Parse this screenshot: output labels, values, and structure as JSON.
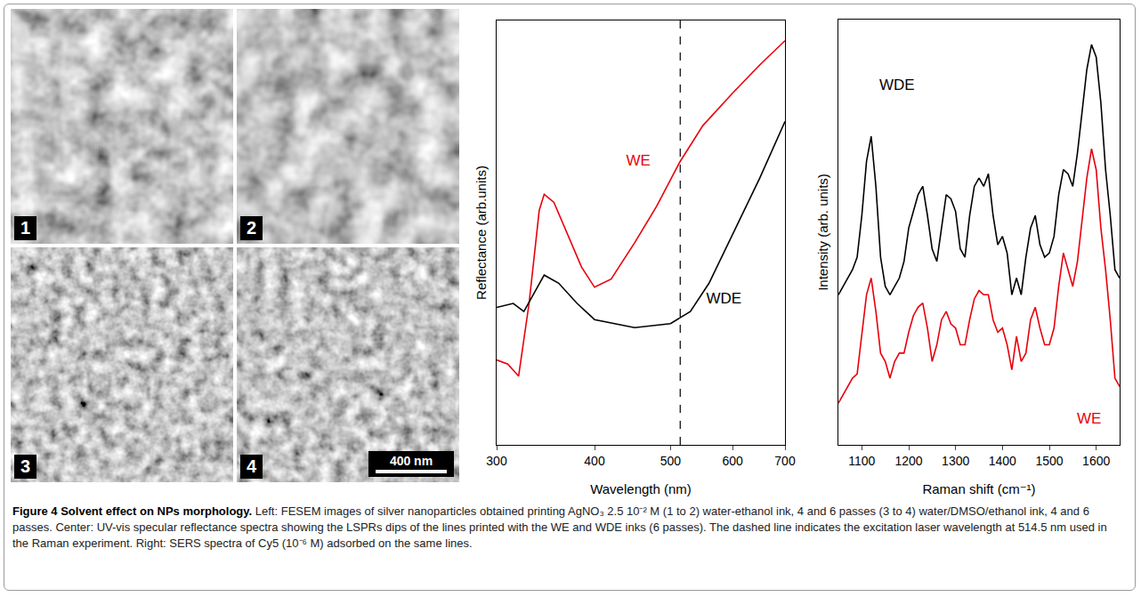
{
  "images": {
    "panels": [
      "1",
      "2",
      "3",
      "4"
    ],
    "scale_bar": "400 nm"
  },
  "chart_data": [
    {
      "type": "line",
      "x_label": "Wavelength (nm)",
      "y_label": "Reflectance (arb.units)",
      "log": "x",
      "xlim": [
        300,
        700
      ],
      "xticks": [
        300,
        400,
        500,
        600,
        700
      ],
      "ylim": [
        0,
        1.05
      ],
      "tick_labels": "x",
      "reference_line": {
        "x": 514.5,
        "line_style": "dashed",
        "color": "#000000"
      },
      "series": [
        {
          "name": "WE",
          "color": "#e8000b",
          "label_x": 455,
          "label_y": 0.7,
          "x": [
            300,
            310,
            320,
            330,
            340,
            345,
            355,
            370,
            385,
            400,
            420,
            450,
            480,
            514,
            550,
            600,
            650,
            700
          ],
          "values": [
            0.21,
            0.2,
            0.17,
            0.35,
            0.58,
            0.62,
            0.6,
            0.52,
            0.44,
            0.39,
            0.41,
            0.5,
            0.59,
            0.7,
            0.79,
            0.87,
            0.94,
            1.0
          ]
        },
        {
          "name": "WDE",
          "color": "#000000",
          "label_x": 585,
          "label_y": 0.36,
          "x": [
            300,
            315,
            325,
            345,
            360,
            380,
            400,
            450,
            500,
            530,
            560,
            600,
            650,
            700
          ],
          "values": [
            0.34,
            0.35,
            0.33,
            0.42,
            0.4,
            0.35,
            0.31,
            0.29,
            0.3,
            0.33,
            0.4,
            0.52,
            0.66,
            0.8
          ]
        }
      ]
    },
    {
      "type": "line",
      "x_label": "Raman shift (cm⁻¹)",
      "y_label": "Intensity (arb. units)",
      "xlim": [
        1050,
        1650
      ],
      "xticks": [
        1100,
        1200,
        1300,
        1400,
        1500,
        1600
      ],
      "ylim": [
        0,
        1.02
      ],
      "tick_labels": "x",
      "x": [
        1050,
        1060,
        1070,
        1080,
        1090,
        1100,
        1110,
        1120,
        1130,
        1140,
        1150,
        1160,
        1170,
        1180,
        1190,
        1200,
        1210,
        1220,
        1230,
        1240,
        1250,
        1260,
        1270,
        1280,
        1290,
        1300,
        1310,
        1320,
        1330,
        1340,
        1350,
        1360,
        1370,
        1380,
        1390,
        1400,
        1410,
        1420,
        1430,
        1440,
        1450,
        1460,
        1470,
        1480,
        1490,
        1500,
        1510,
        1520,
        1530,
        1540,
        1550,
        1560,
        1570,
        1580,
        1590,
        1600,
        1610,
        1620,
        1630,
        1640,
        1650
      ],
      "series": [
        {
          "name": "WDE",
          "color": "#000000",
          "label_x": 1175,
          "label_y": 0.86,
          "values": [
            0.36,
            0.38,
            0.4,
            0.42,
            0.45,
            0.55,
            0.68,
            0.74,
            0.62,
            0.45,
            0.38,
            0.36,
            0.38,
            0.4,
            0.44,
            0.52,
            0.56,
            0.6,
            0.62,
            0.55,
            0.47,
            0.44,
            0.52,
            0.6,
            0.59,
            0.56,
            0.47,
            0.45,
            0.55,
            0.62,
            0.64,
            0.62,
            0.65,
            0.55,
            0.48,
            0.5,
            0.46,
            0.36,
            0.4,
            0.36,
            0.45,
            0.52,
            0.55,
            0.48,
            0.45,
            0.46,
            0.5,
            0.6,
            0.66,
            0.65,
            0.62,
            0.7,
            0.8,
            0.9,
            0.96,
            0.93,
            0.82,
            0.66,
            0.55,
            0.42,
            0.4
          ]
        },
        {
          "name": "WE",
          "color": "#e8000b",
          "label_x": 1585,
          "label_y": 0.06,
          "values": [
            0.1,
            0.12,
            0.14,
            0.16,
            0.17,
            0.26,
            0.36,
            0.4,
            0.32,
            0.22,
            0.2,
            0.16,
            0.2,
            0.22,
            0.22,
            0.27,
            0.31,
            0.33,
            0.34,
            0.28,
            0.2,
            0.24,
            0.3,
            0.32,
            0.29,
            0.28,
            0.24,
            0.24,
            0.3,
            0.35,
            0.37,
            0.36,
            0.36,
            0.3,
            0.27,
            0.28,
            0.24,
            0.18,
            0.26,
            0.2,
            0.22,
            0.3,
            0.33,
            0.28,
            0.24,
            0.24,
            0.28,
            0.38,
            0.46,
            0.42,
            0.38,
            0.44,
            0.54,
            0.64,
            0.71,
            0.66,
            0.52,
            0.42,
            0.3,
            0.16,
            0.14
          ]
        }
      ]
    }
  ],
  "caption": {
    "title": "Figure 4 Solvent effect on NPs morphology.",
    "text": "Left: FESEM images of silver nanoparticles obtained printing AgNO₃ 2.5 10⁻² M (1 to 2) water-ethanol ink, 4 and 6 passes (3 to 4) water/DMSO/ethanol ink, 4 and 6 passes. Center: UV-vis specular reflectance spectra showing the LSPRs dips of the lines printed with the WE and WDE inks (6 passes). The dashed line indicates the excitation laser wavelength at 514.5 nm used in the Raman experiment. Right: SERS spectra of Cy5 (10⁻⁶ M) adsorbed on the same lines."
  }
}
